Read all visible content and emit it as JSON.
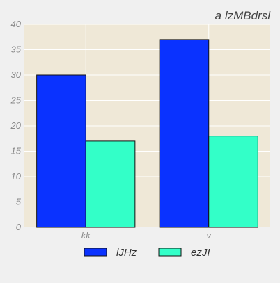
{
  "chart_data": {
    "type": "bar",
    "title": "a lzMBdrsl",
    "xlabel": "",
    "ylabel": "",
    "categories": [
      "kk",
      "v"
    ],
    "series": [
      {
        "name": "lJHz",
        "values": [
          30,
          37
        ],
        "color": "#0a32ff"
      },
      {
        "name": "ezJI",
        "values": [
          17,
          18
        ],
        "color": "#33ffc8"
      }
    ],
    "ylim": [
      0,
      40
    ],
    "yticks": [
      0,
      5,
      10,
      15,
      20,
      25,
      30,
      35,
      40
    ],
    "grid": true,
    "legend_position": "bottom-center",
    "colors": {
      "plot_background": "#efe8d7",
      "page_background": "#f0f0f0",
      "grid": "#ffffff"
    }
  }
}
